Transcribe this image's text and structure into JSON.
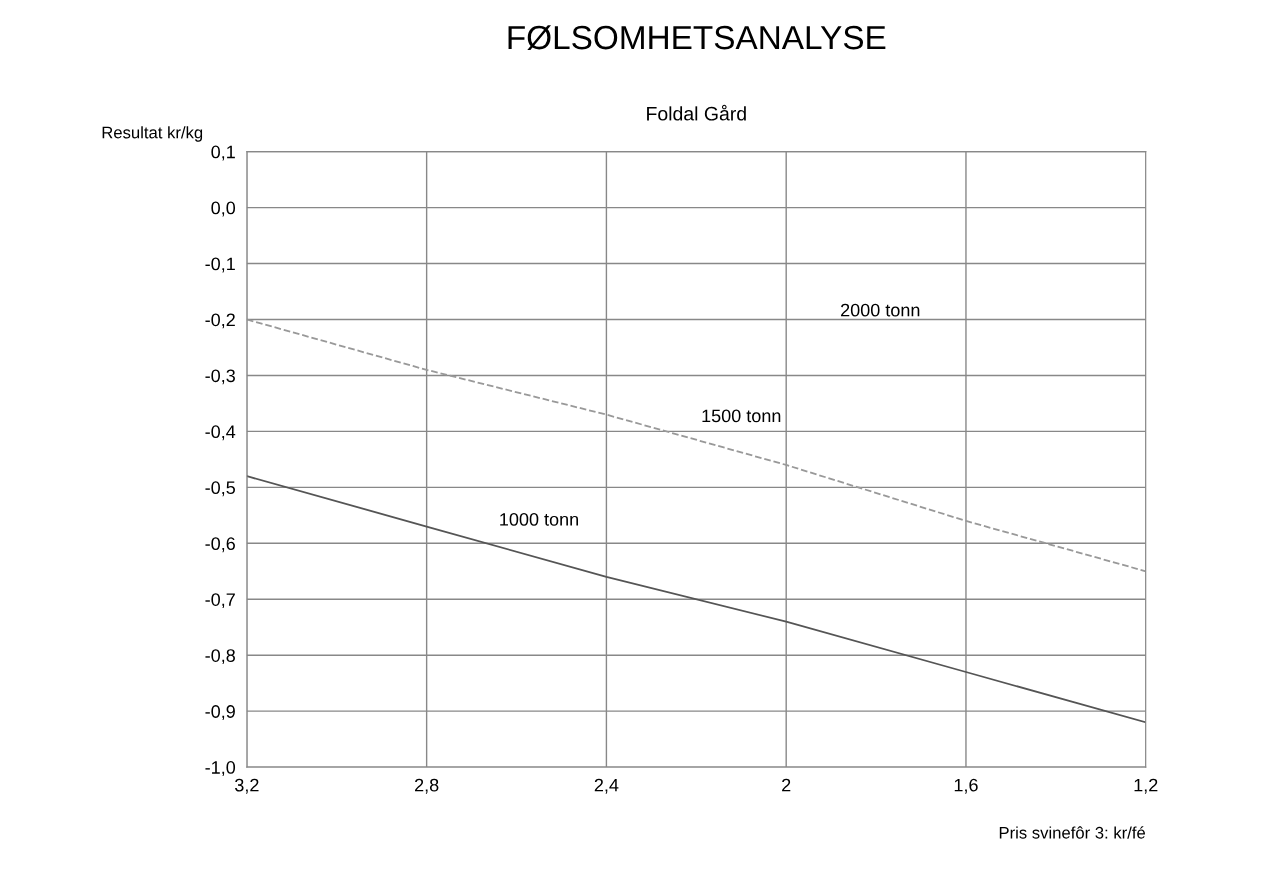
{
  "chart_data": {
    "type": "line",
    "title": "FØLSOMHETSANALYSE",
    "subtitle": "Foldal Gård",
    "xlabel": "Pris svinefôr 3: kr/fé",
    "ylabel": "Resultat kr/kg",
    "x": [
      3.2,
      2.8,
      2.4,
      2.0,
      1.6,
      1.2
    ],
    "series": [
      {
        "name": "1000 tonn",
        "color": "#555555",
        "line_style": "solid",
        "values": [
          -0.48,
          -0.57,
          -0.66,
          -0.74,
          -0.83,
          -0.92
        ]
      },
      {
        "name": "1500 tonn",
        "color": "#999999",
        "line_style": "dashed",
        "values": [
          -0.2,
          -0.29,
          -0.37,
          -0.46,
          -0.56,
          -0.65
        ]
      }
    ],
    "annotations": [
      "2000 tonn"
    ],
    "xlim": [
      3.2,
      1.2
    ],
    "ylim": [
      -1.0,
      0.1
    ],
    "xticks": [
      {
        "value": 3.2,
        "label": "3,2"
      },
      {
        "value": 2.8,
        "label": "2,8"
      },
      {
        "value": 2.4,
        "label": "2,4"
      },
      2,
      {
        "value": 1.6,
        "label": "1,6"
      },
      {
        "value": 1.2,
        "label": "1,2"
      }
    ],
    "yticks": [
      {
        "value": 0.1,
        "label": "0,1"
      },
      {
        "value": 0.0,
        "label": "0,0"
      },
      {
        "value": -0.1,
        "label": "-0,1"
      },
      {
        "value": -0.2,
        "label": "-0,2"
      },
      {
        "value": -0.3,
        "label": "-0,3"
      },
      {
        "value": -0.4,
        "label": "-0,4"
      },
      {
        "value": -0.5,
        "label": "-0,5"
      },
      {
        "value": -0.6,
        "label": "-0,6"
      },
      {
        "value": -0.7,
        "label": "-0,7"
      },
      {
        "value": -0.8,
        "label": "-0,8"
      },
      {
        "value": -0.9,
        "label": "-0,9"
      },
      {
        "value": -1.0,
        "label": "-1,0"
      }
    ],
    "grid": true,
    "legend": false,
    "marker": "none"
  }
}
